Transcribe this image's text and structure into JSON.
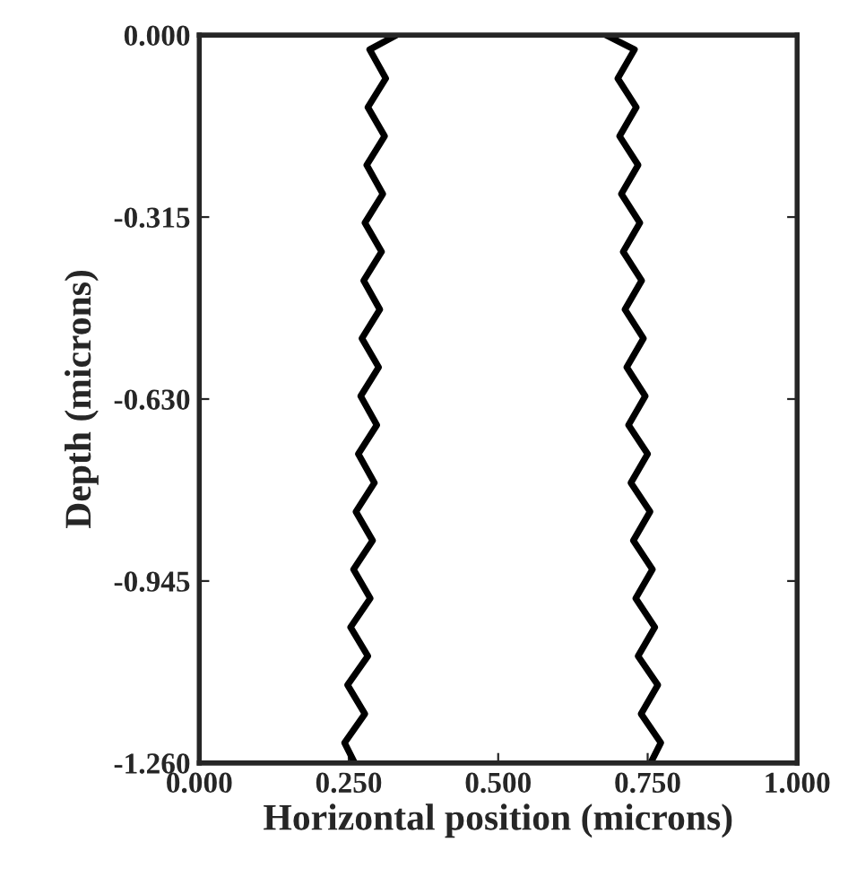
{
  "chart_data": {
    "type": "line",
    "xlabel": "Horizontal position (microns)",
    "ylabel": "Depth (microns)",
    "xlim": [
      0,
      1
    ],
    "ylim": [
      -1.26,
      0
    ],
    "xticks": [
      {
        "value": 0,
        "label": "0.000"
      },
      {
        "value": 0.25,
        "label": "0.250"
      },
      {
        "value": 0.5,
        "label": "0.500"
      },
      {
        "value": 0.75,
        "label": "0.750"
      },
      {
        "value": 1,
        "label": "1.000"
      }
    ],
    "yticks": [
      {
        "value": 0,
        "label": "0.000"
      },
      {
        "value": -0.315,
        "label": "-0.315"
      },
      {
        "value": -0.63,
        "label": "-0.630"
      },
      {
        "value": -0.945,
        "label": "-0.945"
      },
      {
        "value": -1.26,
        "label": "-1.260"
      }
    ],
    "grid": false,
    "legend": false,
    "marker": "none",
    "line_style": "solid",
    "series": [
      {
        "color": "#000000",
        "x": [
          0.33,
          0.285,
          0.312,
          0.282,
          0.31,
          0.28,
          0.307,
          0.277,
          0.305,
          0.275,
          0.302,
          0.272,
          0.3,
          0.27,
          0.297,
          0.266,
          0.293,
          0.262,
          0.29,
          0.258,
          0.286,
          0.253,
          0.282,
          0.248,
          0.277,
          0.243,
          0.26
        ],
        "values": [
          0,
          -0.025,
          -0.075,
          -0.125,
          -0.175,
          -0.225,
          -0.275,
          -0.325,
          -0.375,
          -0.425,
          -0.475,
          -0.525,
          -0.575,
          -0.625,
          -0.675,
          -0.725,
          -0.775,
          -0.825,
          -0.875,
          -0.925,
          -0.975,
          -1.025,
          -1.075,
          -1.125,
          -1.175,
          -1.225,
          -1.26
        ]
      },
      {
        "color": "#000000",
        "x": [
          0.68,
          0.728,
          0.7,
          0.731,
          0.703,
          0.734,
          0.706,
          0.737,
          0.709,
          0.74,
          0.712,
          0.743,
          0.715,
          0.746,
          0.718,
          0.75,
          0.722,
          0.754,
          0.726,
          0.758,
          0.73,
          0.762,
          0.734,
          0.767,
          0.739,
          0.772,
          0.755
        ],
        "values": [
          0,
          -0.025,
          -0.075,
          -0.125,
          -0.175,
          -0.225,
          -0.275,
          -0.325,
          -0.375,
          -0.425,
          -0.475,
          -0.525,
          -0.575,
          -0.625,
          -0.675,
          -0.725,
          -0.775,
          -0.825,
          -0.875,
          -0.925,
          -0.975,
          -1.025,
          -1.075,
          -1.125,
          -1.175,
          -1.225,
          -1.26
        ]
      }
    ]
  }
}
